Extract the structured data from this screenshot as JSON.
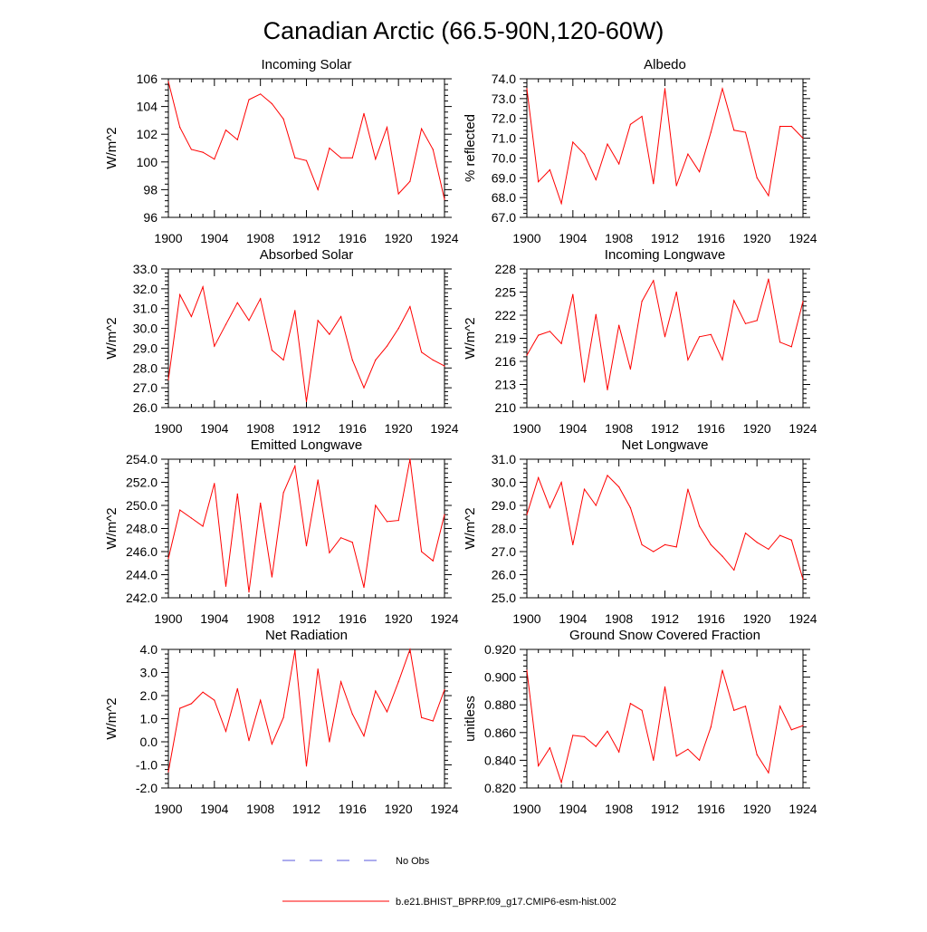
{
  "title": "Canadian Arctic (66.5-90N,120-60W)",
  "colors": {
    "model": "#ff0000",
    "obs": "#5a5adc",
    "axis": "#000000"
  },
  "legend": {
    "obs_label": "No Obs",
    "model_label": "b.e21.BHIST_BPRP.f09_g17.CMIP6-esm-hist.002"
  },
  "chart_data": [
    {
      "type": "line",
      "title": "Incoming Solar",
      "ylabel": "W/m^2",
      "xlim": [
        1900,
        1924
      ],
      "ylim": [
        96,
        106
      ],
      "xticks": [
        1900,
        1904,
        1908,
        1912,
        1916,
        1920,
        1924
      ],
      "xtick_labels": [
        "1900",
        "1904",
        "1908",
        "1912",
        "1916",
        "1920",
        "1924"
      ],
      "yticks": [
        96,
        98,
        100,
        102,
        104,
        106
      ],
      "ytick_labels": [
        "96",
        "98",
        "100",
        "102",
        "104",
        "106"
      ],
      "x": [
        1900,
        1901,
        1902,
        1903,
        1904,
        1905,
        1906,
        1907,
        1908,
        1909,
        1910,
        1911,
        1912,
        1913,
        1914,
        1915,
        1916,
        1917,
        1918,
        1919,
        1920,
        1921,
        1922,
        1923,
        1924
      ],
      "series": [
        {
          "name": "b.e21.BHIST_BPRP.f09_g17.CMIP6-esm-hist.002",
          "values": [
            105.8,
            102.5,
            100.9,
            100.7,
            100.2,
            102.3,
            101.6,
            104.5,
            104.9,
            104.2,
            103.1,
            100.3,
            100.1,
            98.0,
            101.0,
            100.3,
            100.3,
            103.5,
            100.2,
            102.5,
            97.7,
            98.6,
            102.4,
            100.9,
            97.3
          ]
        }
      ]
    },
    {
      "type": "line",
      "title": "Albedo",
      "ylabel": "% reflected",
      "xlim": [
        1900,
        1924
      ],
      "ylim": [
        67.0,
        74.0
      ],
      "xticks": [
        1900,
        1904,
        1908,
        1912,
        1916,
        1920,
        1924
      ],
      "xtick_labels": [
        "1900",
        "1904",
        "1908",
        "1912",
        "1916",
        "1920",
        "1924"
      ],
      "yticks": [
        67,
        68,
        69,
        70,
        71,
        72,
        73,
        74
      ],
      "ytick_labels": [
        "67.0",
        "68.0",
        "69.0",
        "70.0",
        "71.0",
        "72.0",
        "73.0",
        "74.0"
      ],
      "x": [
        1900,
        1901,
        1902,
        1903,
        1904,
        1905,
        1906,
        1907,
        1908,
        1909,
        1910,
        1911,
        1912,
        1913,
        1914,
        1915,
        1916,
        1917,
        1918,
        1919,
        1920,
        1921,
        1922,
        1923,
        1924
      ],
      "series": [
        {
          "name": "b.e21.BHIST_BPRP.f09_g17.CMIP6-esm-hist.002",
          "values": [
            73.5,
            68.8,
            69.4,
            67.7,
            70.8,
            70.2,
            68.9,
            70.7,
            69.7,
            71.7,
            72.1,
            68.7,
            73.5,
            68.6,
            70.2,
            69.3,
            71.3,
            73.5,
            71.4,
            71.3,
            69.0,
            68.1,
            71.6,
            71.6,
            71.0
          ]
        }
      ]
    },
    {
      "type": "line",
      "title": "Absorbed Solar",
      "ylabel": "W/m^2",
      "xlim": [
        1900,
        1924
      ],
      "ylim": [
        26.0,
        33.0
      ],
      "xticks": [
        1900,
        1904,
        1908,
        1912,
        1916,
        1920,
        1924
      ],
      "xtick_labels": [
        "1900",
        "1904",
        "1908",
        "1912",
        "1916",
        "1920",
        "1924"
      ],
      "yticks": [
        26,
        27,
        28,
        29,
        30,
        31,
        32,
        33
      ],
      "ytick_labels": [
        "26.0",
        "27.0",
        "28.0",
        "29.0",
        "30.0",
        "31.0",
        "32.0",
        "33.0"
      ],
      "x": [
        1900,
        1901,
        1902,
        1903,
        1904,
        1905,
        1906,
        1907,
        1908,
        1909,
        1910,
        1911,
        1912,
        1913,
        1914,
        1915,
        1916,
        1917,
        1918,
        1919,
        1920,
        1921,
        1922,
        1923,
        1924
      ],
      "series": [
        {
          "name": "b.e21.BHIST_BPRP.f09_g17.CMIP6-esm-hist.002",
          "values": [
            27.4,
            31.7,
            30.6,
            32.1,
            29.1,
            30.2,
            31.3,
            30.4,
            31.5,
            28.9,
            28.4,
            30.9,
            26.3,
            30.4,
            29.7,
            30.6,
            28.4,
            27.0,
            28.4,
            29.1,
            30.0,
            31.1,
            28.8,
            28.4,
            28.1
          ]
        }
      ]
    },
    {
      "type": "line",
      "title": "Incoming Longwave",
      "ylabel": "W/m^2",
      "xlim": [
        1900,
        1924
      ],
      "ylim": [
        210,
        228
      ],
      "xticks": [
        1900,
        1904,
        1908,
        1912,
        1916,
        1920,
        1924
      ],
      "xtick_labels": [
        "1900",
        "1904",
        "1908",
        "1912",
        "1916",
        "1920",
        "1924"
      ],
      "yticks": [
        210,
        213,
        216,
        219,
        222,
        225,
        228
      ],
      "ytick_labels": [
        "210",
        "213",
        "216",
        "219",
        "222",
        "225",
        "228"
      ],
      "x": [
        1900,
        1901,
        1902,
        1903,
        1904,
        1905,
        1906,
        1907,
        1908,
        1909,
        1910,
        1911,
        1912,
        1913,
        1914,
        1915,
        1916,
        1917,
        1918,
        1919,
        1920,
        1921,
        1922,
        1923,
        1924
      ],
      "series": [
        {
          "name": "b.e21.BHIST_BPRP.f09_g17.CMIP6-esm-hist.002",
          "values": [
            216.8,
            219.4,
            219.9,
            218.3,
            224.7,
            213.3,
            222.1,
            212.3,
            220.7,
            215.0,
            223.8,
            226.5,
            219.2,
            225.0,
            216.2,
            219.2,
            219.5,
            216.2,
            223.9,
            220.9,
            221.3,
            226.7,
            218.5,
            217.9,
            223.8
          ]
        }
      ]
    },
    {
      "type": "line",
      "title": "Emitted Longwave",
      "ylabel": "W/m^2",
      "xlim": [
        1900,
        1924
      ],
      "ylim": [
        242.0,
        254.0
      ],
      "xticks": [
        1900,
        1904,
        1908,
        1912,
        1916,
        1920,
        1924
      ],
      "xtick_labels": [
        "1900",
        "1904",
        "1908",
        "1912",
        "1916",
        "1920",
        "1924"
      ],
      "yticks": [
        242,
        244,
        246,
        248,
        250,
        252,
        254
      ],
      "ytick_labels": [
        "242.0",
        "244.0",
        "246.0",
        "248.0",
        "250.0",
        "252.0",
        "254.0"
      ],
      "x": [
        1900,
        1901,
        1902,
        1903,
        1904,
        1905,
        1906,
        1907,
        1908,
        1909,
        1910,
        1911,
        1912,
        1913,
        1914,
        1915,
        1916,
        1917,
        1918,
        1919,
        1920,
        1921,
        1922,
        1923,
        1924
      ],
      "series": [
        {
          "name": "b.e21.BHIST_BPRP.f09_g17.CMIP6-esm-hist.002",
          "values": [
            245.4,
            249.6,
            248.9,
            248.2,
            251.9,
            243.0,
            251.0,
            242.5,
            250.2,
            243.8,
            251.1,
            253.4,
            246.5,
            252.2,
            245.9,
            247.2,
            246.8,
            242.9,
            250.0,
            248.6,
            248.7,
            254.0,
            246.0,
            245.2,
            249.2
          ]
        }
      ]
    },
    {
      "type": "line",
      "title": "Net Longwave",
      "ylabel": "W/m^2",
      "xlim": [
        1900,
        1924
      ],
      "ylim": [
        25.0,
        31.0
      ],
      "xticks": [
        1900,
        1904,
        1908,
        1912,
        1916,
        1920,
        1924
      ],
      "xtick_labels": [
        "1900",
        "1904",
        "1908",
        "1912",
        "1916",
        "1920",
        "1924"
      ],
      "yticks": [
        25,
        26,
        27,
        28,
        29,
        30,
        31
      ],
      "ytick_labels": [
        "25.0",
        "26.0",
        "27.0",
        "28.0",
        "29.0",
        "30.0",
        "31.0"
      ],
      "x": [
        1900,
        1901,
        1902,
        1903,
        1904,
        1905,
        1906,
        1907,
        1908,
        1909,
        1910,
        1911,
        1912,
        1913,
        1914,
        1915,
        1916,
        1917,
        1918,
        1919,
        1920,
        1921,
        1922,
        1923,
        1924
      ],
      "series": [
        {
          "name": "b.e21.BHIST_BPRP.f09_g17.CMIP6-esm-hist.002",
          "values": [
            28.6,
            30.2,
            28.9,
            30.0,
            27.3,
            29.7,
            29.0,
            30.3,
            29.8,
            28.9,
            27.3,
            27.0,
            27.3,
            27.2,
            29.7,
            28.1,
            27.3,
            26.8,
            26.2,
            27.8,
            27.4,
            27.1,
            27.7,
            27.5,
            25.8
          ]
        }
      ]
    },
    {
      "type": "line",
      "title": "Net Radiation",
      "ylabel": "W/m^2",
      "xlim": [
        1900,
        1924
      ],
      "ylim": [
        -2.0,
        4.0
      ],
      "xticks": [
        1900,
        1904,
        1908,
        1912,
        1916,
        1920,
        1924
      ],
      "xtick_labels": [
        "1900",
        "1904",
        "1908",
        "1912",
        "1916",
        "1920",
        "1924"
      ],
      "yticks": [
        -2,
        -1,
        0,
        1,
        2,
        3,
        4
      ],
      "ytick_labels": [
        "-2.0",
        "-1.0",
        "0.0",
        "1.0",
        "2.0",
        "3.0",
        "4.0"
      ],
      "x": [
        1900,
        1901,
        1902,
        1903,
        1904,
        1905,
        1906,
        1907,
        1908,
        1909,
        1910,
        1911,
        1912,
        1913,
        1914,
        1915,
        1916,
        1917,
        1918,
        1919,
        1920,
        1921,
        1922,
        1923,
        1924
      ],
      "series": [
        {
          "name": "b.e21.BHIST_BPRP.f09_g17.CMIP6-esm-hist.002",
          "values": [
            -1.3,
            1.45,
            1.65,
            2.15,
            1.8,
            0.45,
            2.3,
            0.05,
            1.8,
            -0.1,
            1.05,
            3.95,
            -1.05,
            3.15,
            0.0,
            2.6,
            1.2,
            0.25,
            2.2,
            1.3,
            2.6,
            4.0,
            1.05,
            0.9,
            2.25
          ]
        }
      ]
    },
    {
      "type": "line",
      "title": "Ground Snow Covered Fraction",
      "ylabel": "unitless",
      "xlim": [
        1900,
        1924
      ],
      "ylim": [
        0.82,
        0.92
      ],
      "xticks": [
        1900,
        1904,
        1908,
        1912,
        1916,
        1920,
        1924
      ],
      "xtick_labels": [
        "1900",
        "1904",
        "1908",
        "1912",
        "1916",
        "1920",
        "1924"
      ],
      "yticks": [
        0.82,
        0.84,
        0.86,
        0.88,
        0.9,
        0.92
      ],
      "ytick_labels": [
        "0.820",
        "0.840",
        "0.860",
        "0.880",
        "0.900",
        "0.920"
      ],
      "x": [
        1900,
        1901,
        1902,
        1903,
        1904,
        1905,
        1906,
        1907,
        1908,
        1909,
        1910,
        1911,
        1912,
        1913,
        1914,
        1915,
        1916,
        1917,
        1918,
        1919,
        1920,
        1921,
        1922,
        1923,
        1924
      ],
      "series": [
        {
          "name": "b.e21.BHIST_BPRP.f09_g17.CMIP6-esm-hist.002",
          "values": [
            0.905,
            0.836,
            0.849,
            0.824,
            0.858,
            0.857,
            0.85,
            0.861,
            0.846,
            0.881,
            0.876,
            0.84,
            0.893,
            0.843,
            0.848,
            0.84,
            0.864,
            0.905,
            0.876,
            0.879,
            0.844,
            0.831,
            0.879,
            0.862,
            0.865
          ]
        }
      ]
    }
  ]
}
